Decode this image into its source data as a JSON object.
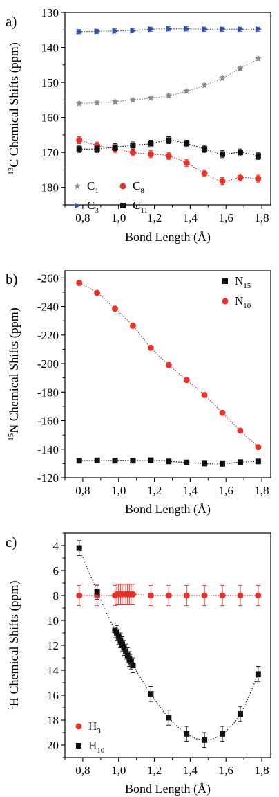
{
  "chart_data": [
    {
      "type": "scatter",
      "panel_label": "a)",
      "xlabel": "Bond Length (Å)",
      "ylabel": {
        "sup": "13",
        "main": "C Chemical Shifts (ppm)"
      },
      "xlim": [
        0.7,
        1.85
      ],
      "ylim": [
        130,
        185
      ],
      "y_inverted": true,
      "xticks": [
        "0,8",
        "1,0",
        "1,2",
        "1,4",
        "1,6",
        "1,8"
      ],
      "yticks": [
        "130",
        "140",
        "150",
        "160",
        "170",
        "180"
      ],
      "legend_position": "bottom-left",
      "series": [
        {
          "name": "C",
          "sub": "1",
          "marker": "star",
          "color": "#888888",
          "x": [
            0.78,
            0.88,
            0.98,
            1.08,
            1.18,
            1.28,
            1.38,
            1.48,
            1.58,
            1.68,
            1.78
          ],
          "y": [
            156.0,
            155.8,
            155.5,
            155.0,
            154.5,
            153.8,
            152.5,
            150.8,
            148.8,
            146.0,
            143.2
          ],
          "err": [
            0.5,
            0.5,
            0.5,
            0.5,
            0.5,
            0.5,
            0.5,
            0.5,
            0.5,
            0.5,
            0.5
          ]
        },
        {
          "name": "C",
          "sub": "8",
          "marker": "circle",
          "color": "#e8332a",
          "x": [
            0.78,
            0.88,
            0.98,
            1.08,
            1.18,
            1.28,
            1.38,
            1.48,
            1.58,
            1.68,
            1.78
          ],
          "y": [
            166.5,
            168.0,
            169.0,
            170.0,
            170.5,
            171.0,
            173.0,
            176.0,
            178.2,
            177.2,
            177.5
          ],
          "err": [
            1.0,
            1.0,
            1.0,
            1.0,
            1.0,
            1.0,
            1.0,
            1.0,
            1.0,
            1.0,
            1.0
          ]
        },
        {
          "name": "C",
          "sub": "3",
          "marker": "triangle",
          "color": "#2f4fa8",
          "x": [
            0.78,
            0.88,
            0.98,
            1.08,
            1.18,
            1.28,
            1.38,
            1.48,
            1.58,
            1.68,
            1.78
          ],
          "y": [
            135.5,
            135.4,
            135.3,
            135.2,
            134.8,
            134.7,
            134.7,
            134.8,
            134.8,
            134.8,
            134.8
          ],
          "err": [
            0.6,
            0.6,
            0.6,
            0.6,
            0.6,
            0.6,
            0.6,
            0.6,
            0.6,
            0.6,
            0.6
          ]
        },
        {
          "name": "C",
          "sub": "11",
          "marker": "square",
          "color": "#111111",
          "x": [
            0.78,
            0.88,
            0.98,
            1.08,
            1.18,
            1.28,
            1.38,
            1.48,
            1.58,
            1.68,
            1.78
          ],
          "y": [
            169.0,
            169.0,
            168.5,
            168.0,
            167.5,
            166.5,
            167.5,
            169.0,
            170.5,
            170.0,
            171.0
          ],
          "err": [
            1.0,
            1.0,
            1.0,
            1.0,
            1.0,
            1.0,
            1.0,
            1.0,
            1.0,
            1.0,
            1.0
          ]
        }
      ]
    },
    {
      "type": "scatter",
      "panel_label": "b)",
      "xlabel": "Bond Length (Å)",
      "ylabel": {
        "sup": "15",
        "main": "N Chemical Shifts (ppm)"
      },
      "xlim": [
        0.7,
        1.85
      ],
      "ylim": [
        -265,
        -120
      ],
      "y_inverted": false,
      "xticks": [
        "0,8",
        "1,0",
        "1,2",
        "1,4",
        "1,6",
        "1,8"
      ],
      "yticks": [
        "-260",
        "-240",
        "-220",
        "-200",
        "-180",
        "-160",
        "-140",
        "-120"
      ],
      "legend_position": "top-right",
      "series": [
        {
          "name": "N",
          "sub": "15",
          "marker": "square",
          "color": "#111111",
          "x": [
            0.78,
            0.88,
            0.98,
            1.08,
            1.18,
            1.28,
            1.38,
            1.48,
            1.58,
            1.68,
            1.78
          ],
          "y": [
            -132.0,
            -132.2,
            -132.0,
            -132.0,
            -132.3,
            -131.5,
            -130.8,
            -130.0,
            -129.8,
            -131.0,
            -131.5
          ],
          "err": [
            1.5,
            1.5,
            1.5,
            1.5,
            1.5,
            1.5,
            1.5,
            1.5,
            1.5,
            1.5,
            1.5
          ]
        },
        {
          "name": "N",
          "sub": "10",
          "marker": "circle",
          "color": "#e8332a",
          "x": [
            0.78,
            0.88,
            0.98,
            1.08,
            1.18,
            1.28,
            1.38,
            1.48,
            1.58,
            1.68,
            1.78
          ],
          "y": [
            -256.5,
            -249.5,
            -238.5,
            -226.5,
            -211.0,
            -199.0,
            -188.5,
            -178.0,
            -165.5,
            -153.0,
            -141.5
          ],
          "err": [
            0.5,
            0.5,
            0.5,
            0.5,
            0.5,
            0.5,
            0.5,
            0.5,
            0.5,
            0.5,
            0.5
          ]
        }
      ]
    },
    {
      "type": "scatter",
      "panel_label": "c)",
      "xlabel": "Bond Length (Å)",
      "ylabel": {
        "sup": "1",
        "main": "H Chemical Shifts (ppm)"
      },
      "xlim": [
        0.7,
        1.85
      ],
      "ylim": [
        3,
        21
      ],
      "y_inverted": true,
      "xticks": [
        "0,8",
        "1,0",
        "1,2",
        "1,4",
        "1,6",
        "1,8"
      ],
      "yticks": [
        "4",
        "6",
        "8",
        "10",
        "12",
        "14",
        "16",
        "18",
        "20"
      ],
      "legend_position": "bottom-left",
      "series": [
        {
          "name": "H",
          "sub": "3",
          "marker": "circle",
          "color": "#e8332a",
          "x": [
            0.78,
            0.88,
            0.98,
            0.99,
            1.0,
            1.01,
            1.02,
            1.03,
            1.04,
            1.05,
            1.06,
            1.07,
            1.08,
            1.18,
            1.28,
            1.38,
            1.48,
            1.58,
            1.68,
            1.78
          ],
          "y": [
            8.0,
            8.0,
            8.0,
            7.9,
            7.9,
            7.9,
            7.9,
            7.9,
            7.9,
            7.9,
            7.9,
            7.9,
            7.9,
            8.0,
            8.0,
            8.0,
            8.0,
            8.0,
            8.0,
            8.0
          ],
          "err": [
            0.8,
            0.8,
            0.8,
            0.8,
            0.8,
            0.8,
            0.8,
            0.8,
            0.8,
            0.8,
            0.8,
            0.8,
            0.8,
            0.8,
            0.8,
            0.8,
            0.8,
            0.8,
            0.8,
            0.8
          ]
        },
        {
          "name": "H",
          "sub": "10",
          "marker": "square",
          "color": "#111111",
          "x": [
            0.78,
            0.88,
            0.98,
            0.99,
            1.0,
            1.01,
            1.02,
            1.03,
            1.04,
            1.05,
            1.06,
            1.07,
            1.08,
            1.18,
            1.28,
            1.38,
            1.48,
            1.58,
            1.68,
            1.78
          ],
          "y": [
            4.2,
            7.7,
            10.8,
            11.0,
            11.3,
            11.6,
            11.9,
            12.2,
            12.5,
            12.8,
            13.1,
            13.3,
            13.6,
            15.9,
            17.8,
            19.1,
            19.6,
            19.1,
            17.5,
            14.3
          ],
          "err": [
            0.6,
            0.6,
            0.6,
            0.6,
            0.6,
            0.6,
            0.6,
            0.6,
            0.6,
            0.6,
            0.6,
            0.6,
            0.6,
            0.6,
            0.6,
            0.6,
            0.6,
            0.6,
            0.6,
            0.6
          ]
        }
      ]
    }
  ]
}
